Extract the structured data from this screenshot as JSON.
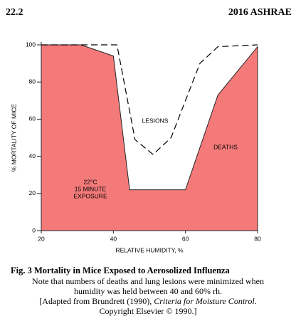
{
  "header": {
    "left": "22.2",
    "right": "2016 ASHRAE"
  },
  "chart_data": {
    "type": "area",
    "xlabel": "RELATIVE HUMIDITY, %",
    "ylabel": "% MORTALITY OF MICE",
    "xlim": [
      20,
      80
    ],
    "xticks": [
      20,
      40,
      60,
      80
    ],
    "ylim": [
      0,
      100
    ],
    "yticks": [
      0,
      20,
      40,
      60,
      80,
      100
    ],
    "series": [
      {
        "name": "DEATHS",
        "color": "#f47a7a",
        "x": [
          20,
          31,
          40,
          44.5,
          60,
          69,
          80
        ],
        "values": [
          100,
          100,
          94,
          22,
          22,
          73,
          99
        ]
      },
      {
        "name": "LESIONS",
        "color": "#000000",
        "dash": true,
        "x": [
          20,
          41,
          46,
          51,
          56,
          64,
          69,
          80
        ],
        "values": [
          100,
          100,
          49,
          41,
          50,
          90,
          99,
          100
        ]
      }
    ],
    "annotations": [
      "22°C",
      "15 MINUTE",
      "EXPOSURE"
    ]
  },
  "caption": {
    "title": "Fig. 3    Mortality in Mice Exposed to Aerosolized Influenza",
    "lines": [
      "Note that numbers of deaths and lung lesions were minimized when",
      "humidity was held between 40 and 60% rh."
    ],
    "source": [
      "[Adapted from Brundrett (1990), ",
      "Criteria for Moisture Control",
      "."
    ],
    "copyright": "Copyright Elsevier © 1990.]"
  }
}
